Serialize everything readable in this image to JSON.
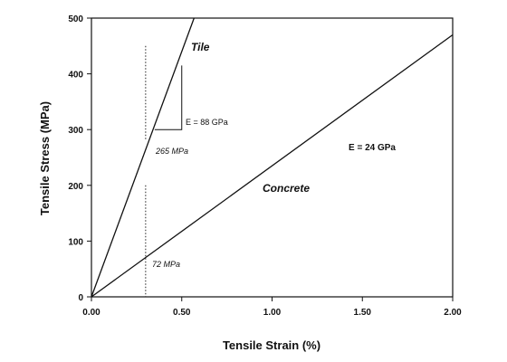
{
  "chart_data": {
    "type": "line",
    "title": "",
    "xlabel": "Tensile Strain (%)",
    "ylabel": "Tensile Stress (MPa)",
    "xlim": [
      0,
      2.0
    ],
    "ylim": [
      0,
      500
    ],
    "xticks": [
      0.0,
      0.5,
      1.0,
      1.5,
      2.0
    ],
    "xtick_labels": [
      "0.00",
      "0.50",
      "1.00",
      "1.50",
      "2.00"
    ],
    "yticks": [
      0,
      100,
      200,
      300,
      400,
      500
    ],
    "ytick_labels": [
      "0",
      "100",
      "200",
      "300",
      "400",
      "500"
    ],
    "grid": false,
    "legend": "none",
    "series": [
      {
        "name": "Tile",
        "x": [
          0.0,
          0.5682
        ],
        "y": [
          0,
          500
        ]
      },
      {
        "name": "Concrete",
        "x": [
          0.0,
          2.0
        ],
        "y": [
          0,
          470
        ]
      }
    ],
    "reference_lines": [
      {
        "type": "vertical",
        "x": 0.3,
        "style": "dotted"
      }
    ],
    "annotations": [
      {
        "id": "tile-modulus",
        "text": "E = 88 GPa"
      },
      {
        "id": "concrete-modulus",
        "text": "E = 24 GPa"
      },
      {
        "id": "tile-stress",
        "text": "265 MPa"
      },
      {
        "id": "concrete-stress",
        "text": "72 MPa"
      }
    ],
    "slope_triangle": {
      "x": [
        0.35,
        0.5
      ],
      "y": [
        300,
        415
      ]
    }
  }
}
